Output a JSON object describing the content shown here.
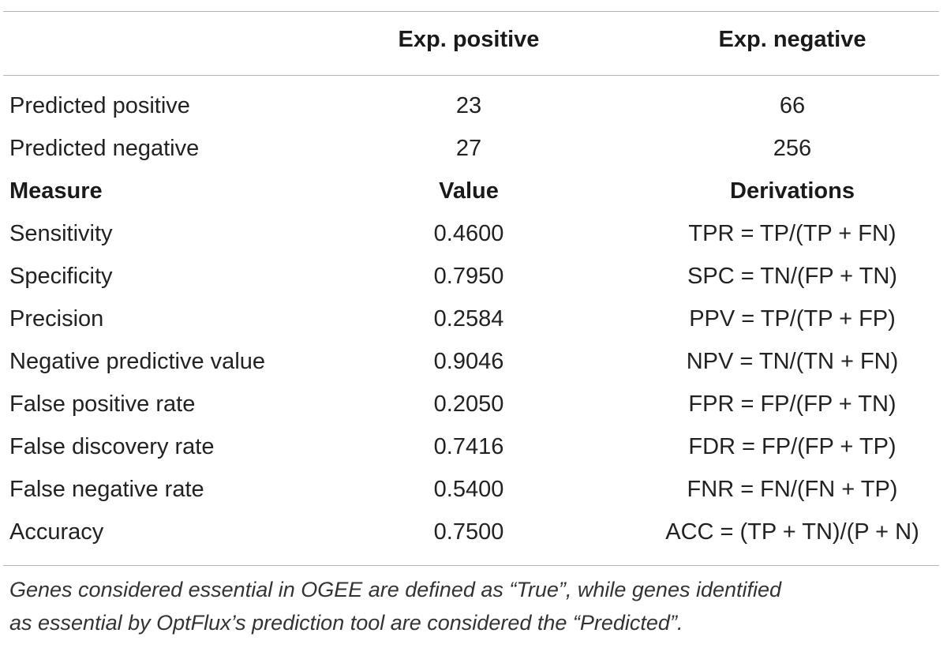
{
  "table": {
    "header": {
      "label": "",
      "col1": "Exp. positive",
      "col2": "Exp. negative"
    },
    "confusion_rows": [
      {
        "label": "Predicted positive",
        "col1": "23",
        "col2": "66"
      },
      {
        "label": "Predicted negative",
        "col1": "27",
        "col2": "256"
      }
    ],
    "subheader": {
      "label": "Measure",
      "col1": "Value",
      "col2": "Derivations"
    },
    "measure_rows": [
      {
        "label": "Sensitivity",
        "value": "0.4600",
        "derivation": "TPR = TP/(TP + FN)"
      },
      {
        "label": "Specificity",
        "value": "0.7950",
        "derivation": "SPC = TN/(FP + TN)"
      },
      {
        "label": "Precision",
        "value": "0.2584",
        "derivation": "PPV = TP/(TP + FP)"
      },
      {
        "label": "Negative predictive value",
        "value": "0.9046",
        "derivation": "NPV = TN/(TN + FN)"
      },
      {
        "label": "False positive rate",
        "value": "0.2050",
        "derivation": "FPR = FP/(FP + TN)"
      },
      {
        "label": "False discovery rate",
        "value": "0.7416",
        "derivation": "FDR = FP/(FP + TP)"
      },
      {
        "label": "False negative rate",
        "value": "0.5400",
        "derivation": "FNR = FN/(FN + TP)"
      },
      {
        "label": "Accuracy",
        "value": "0.7500",
        "derivation": "ACC = (TP + TN)/(P + N)"
      }
    ]
  },
  "footnote": {
    "line1": "Genes considered essential in OGEE are defined as “True”, while genes identified",
    "line2": "as essential by OptFlux’s prediction tool are considered the “Predicted”."
  }
}
